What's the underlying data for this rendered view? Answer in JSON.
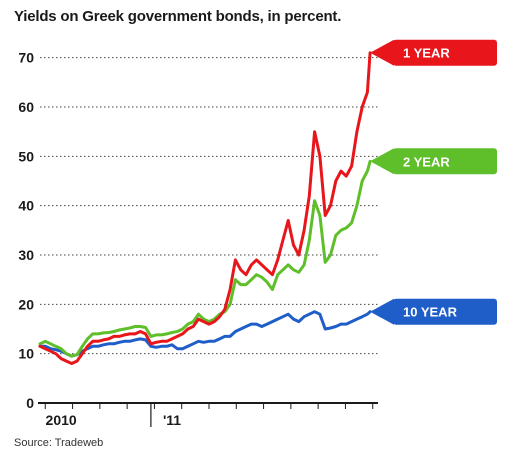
{
  "chart_data": {
    "type": "line",
    "title": "Yields on Greek government bonds, in percent.",
    "source": "Source: Tradeweb",
    "ylim": [
      0,
      75
    ],
    "yticks": [
      "0",
      "10",
      "20",
      "30",
      "40",
      "50",
      "60",
      "70"
    ],
    "ytick_values": [
      0,
      10,
      20,
      30,
      40,
      50,
      60,
      70
    ],
    "xlim": [
      0,
      1.28
    ],
    "xticks": [
      {
        "label": "2010",
        "value": 0.08
      },
      {
        "label": "'11",
        "value": 0.5
      }
    ],
    "year_boundary": 0.42,
    "grid": "dotted horizontal",
    "series": [
      {
        "name": "1 YEAR",
        "color": "#e8161b",
        "x": [
          0.0,
          0.02,
          0.04,
          0.06,
          0.08,
          0.1,
          0.12,
          0.14,
          0.16,
          0.18,
          0.2,
          0.22,
          0.24,
          0.26,
          0.28,
          0.3,
          0.32,
          0.34,
          0.36,
          0.38,
          0.4,
          0.42,
          0.44,
          0.46,
          0.48,
          0.5,
          0.52,
          0.54,
          0.56,
          0.58,
          0.6,
          0.62,
          0.64,
          0.66,
          0.68,
          0.7,
          0.72,
          0.74,
          0.76,
          0.78,
          0.8,
          0.82,
          0.84,
          0.86,
          0.88,
          0.9,
          0.92,
          0.94,
          0.96,
          0.98,
          1.0,
          1.02,
          1.04,
          1.06,
          1.08,
          1.1,
          1.12,
          1.14,
          1.16,
          1.18,
          1.2,
          1.22,
          1.24,
          1.25
        ],
        "values": [
          11.5,
          11.0,
          10.5,
          10.0,
          9.0,
          8.5,
          8.0,
          8.5,
          10.0,
          11.5,
          12.5,
          12.5,
          12.8,
          13.0,
          13.5,
          13.5,
          13.8,
          14.0,
          14.0,
          14.5,
          14.0,
          12.0,
          12.3,
          12.5,
          12.5,
          13.0,
          13.5,
          14.0,
          15.0,
          15.5,
          17.0,
          16.5,
          16.0,
          16.5,
          17.5,
          19.0,
          23.0,
          29.0,
          27.0,
          26.0,
          28.0,
          29.0,
          28.0,
          27.0,
          26.0,
          29.0,
          33.0,
          37.0,
          32.0,
          30.0,
          35.0,
          42.0,
          55.0,
          50.0,
          38.0,
          40.0,
          45.0,
          47.0,
          46.0,
          48.0,
          55.0,
          60.0,
          63.0,
          71.0
        ]
      },
      {
        "name": "2 YEAR",
        "color": "#5fbf2a",
        "x": [
          0.0,
          0.02,
          0.04,
          0.06,
          0.08,
          0.1,
          0.12,
          0.14,
          0.16,
          0.18,
          0.2,
          0.22,
          0.24,
          0.26,
          0.28,
          0.3,
          0.32,
          0.34,
          0.36,
          0.38,
          0.4,
          0.42,
          0.44,
          0.46,
          0.48,
          0.5,
          0.52,
          0.54,
          0.56,
          0.58,
          0.6,
          0.62,
          0.64,
          0.66,
          0.68,
          0.7,
          0.72,
          0.74,
          0.76,
          0.78,
          0.8,
          0.82,
          0.84,
          0.86,
          0.88,
          0.9,
          0.92,
          0.94,
          0.96,
          0.98,
          1.0,
          1.02,
          1.04,
          1.06,
          1.08,
          1.1,
          1.12,
          1.14,
          1.16,
          1.18,
          1.2,
          1.22,
          1.24,
          1.25
        ],
        "values": [
          12.0,
          12.5,
          12.0,
          11.5,
          11.0,
          10.0,
          9.5,
          9.8,
          11.5,
          13.0,
          14.0,
          14.0,
          14.2,
          14.3,
          14.5,
          14.8,
          15.0,
          15.2,
          15.5,
          15.5,
          15.3,
          13.5,
          13.8,
          13.8,
          14.0,
          14.3,
          14.5,
          15.0,
          16.0,
          16.5,
          18.0,
          17.0,
          16.5,
          17.0,
          18.0,
          18.5,
          20.0,
          25.0,
          24.0,
          24.0,
          25.0,
          26.0,
          25.5,
          24.5,
          23.0,
          26.0,
          27.0,
          28.0,
          27.0,
          26.5,
          28.0,
          33.0,
          41.0,
          38.0,
          28.5,
          30.0,
          34.0,
          35.0,
          35.5,
          36.5,
          40.0,
          45.0,
          47.0,
          49.0
        ]
      },
      {
        "name": "10 YEAR",
        "color": "#1f5ec9",
        "x": [
          0.0,
          0.02,
          0.04,
          0.06,
          0.08,
          0.1,
          0.12,
          0.14,
          0.16,
          0.18,
          0.2,
          0.22,
          0.24,
          0.26,
          0.28,
          0.3,
          0.32,
          0.34,
          0.36,
          0.38,
          0.4,
          0.42,
          0.44,
          0.46,
          0.48,
          0.5,
          0.52,
          0.54,
          0.56,
          0.58,
          0.6,
          0.62,
          0.64,
          0.66,
          0.68,
          0.7,
          0.72,
          0.74,
          0.76,
          0.78,
          0.8,
          0.82,
          0.84,
          0.86,
          0.88,
          0.9,
          0.92,
          0.94,
          0.96,
          0.98,
          1.0,
          1.02,
          1.04,
          1.06,
          1.08,
          1.1,
          1.12,
          1.14,
          1.16,
          1.18,
          1.2,
          1.22,
          1.24,
          1.25
        ],
        "values": [
          11.5,
          11.5,
          11.0,
          10.8,
          10.5,
          10.0,
          9.5,
          9.8,
          10.5,
          11.0,
          11.5,
          11.5,
          11.8,
          12.0,
          12.0,
          12.3,
          12.5,
          12.5,
          12.8,
          13.0,
          12.8,
          11.5,
          11.3,
          11.5,
          11.5,
          11.8,
          11.0,
          11.0,
          11.5,
          12.0,
          12.5,
          12.3,
          12.5,
          12.5,
          13.0,
          13.5,
          13.5,
          14.5,
          15.0,
          15.5,
          16.0,
          16.0,
          15.5,
          16.0,
          16.5,
          17.0,
          17.5,
          18.0,
          17.0,
          16.5,
          17.5,
          18.0,
          18.5,
          18.0,
          15.0,
          15.2,
          15.5,
          16.0,
          16.0,
          16.5,
          17.0,
          17.5,
          18.0,
          18.5
        ]
      }
    ]
  }
}
